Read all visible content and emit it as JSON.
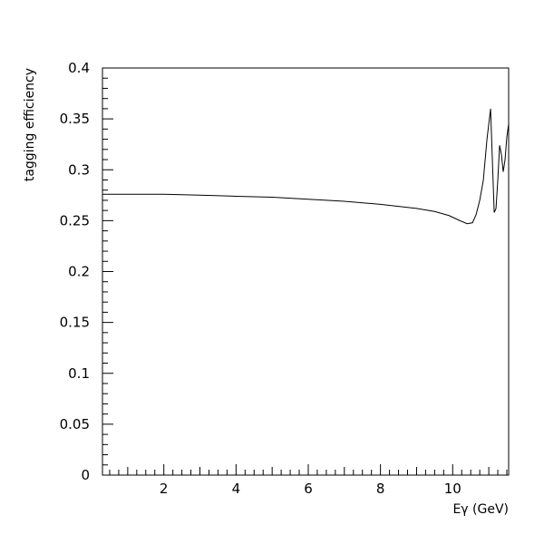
{
  "chart_data": {
    "type": "line",
    "title": "",
    "xlabel": "Eγ (GeV)",
    "ylabel": "tagging efficiency",
    "xlim": [
      0.3,
      11.55
    ],
    "ylim": [
      0,
      0.4
    ],
    "grid": false,
    "x_ticks": [
      2,
      4,
      6,
      8,
      10
    ],
    "y_ticks": [
      0,
      0.05,
      0.1,
      0.15,
      0.2,
      0.25,
      0.3,
      0.35,
      0.4
    ],
    "x_tick_labels": [
      "2",
      "4",
      "6",
      "8",
      "10"
    ],
    "y_tick_labels": [
      "0",
      "0.05",
      "0.1",
      "0.15",
      "0.2",
      "0.25",
      "0.3",
      "0.35",
      "0.4"
    ],
    "series": [
      {
        "x": [
          0.3,
          1.0,
          2.0,
          3.0,
          4.0,
          5.0,
          6.0,
          7.0,
          8.0,
          8.5,
          9.0,
          9.5,
          9.9,
          10.2,
          10.4,
          10.55,
          10.65,
          10.75,
          10.85,
          10.95,
          11.05,
          11.15,
          11.2,
          11.25,
          11.3,
          11.35,
          11.4,
          11.45,
          11.5,
          11.55
        ],
        "y": [
          0.276,
          0.276,
          0.276,
          0.275,
          0.274,
          0.273,
          0.271,
          0.269,
          0.266,
          0.264,
          0.262,
          0.259,
          0.255,
          0.25,
          0.247,
          0.248,
          0.256,
          0.27,
          0.29,
          0.33,
          0.36,
          0.258,
          0.262,
          0.29,
          0.324,
          0.315,
          0.298,
          0.31,
          0.332,
          0.345
        ]
      }
    ]
  }
}
